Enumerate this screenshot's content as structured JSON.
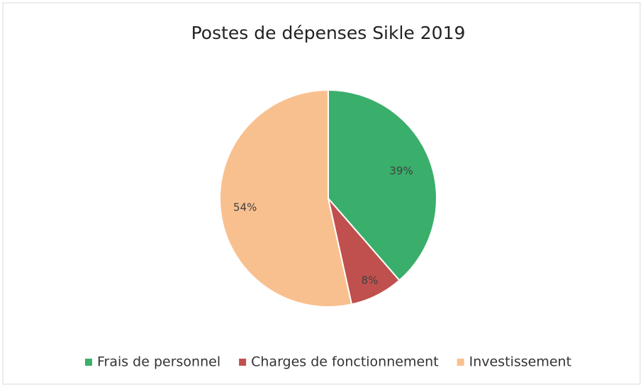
{
  "chart_data": {
    "type": "pie",
    "title": "Postes de dépenses Sikle 2019",
    "categories": [
      "Frais de personnel",
      "Charges de fonctionnement",
      "Investissement"
    ],
    "values": [
      39,
      8,
      54
    ],
    "value_labels": [
      "39%",
      "8%",
      "54%"
    ],
    "colors": [
      "#3aae6b",
      "#c0504d",
      "#f9c08f"
    ],
    "legend": "bottom"
  }
}
